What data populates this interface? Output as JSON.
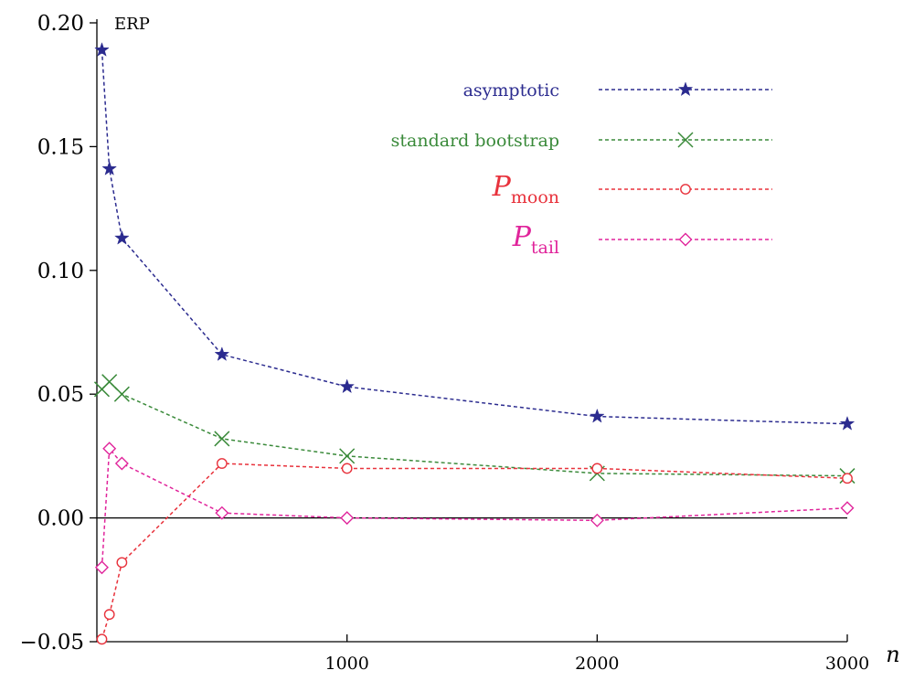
{
  "chart_data": {
    "type": "line",
    "ylabel": "ERP",
    "xlabel": "n",
    "xlim": [
      0,
      3000
    ],
    "ylim": [
      -0.05,
      0.2
    ],
    "xticks": [
      1000,
      2000,
      3000
    ],
    "xtick_labels": [
      "1000",
      "2000",
      "3000"
    ],
    "yticks": [
      -0.05,
      0.0,
      0.05,
      0.1,
      0.15,
      0.2
    ],
    "ytick_labels": [
      "−0.05",
      "0.00",
      "0.05",
      "0.10",
      "0.15",
      "0.20"
    ],
    "zero_line": true,
    "grid": false,
    "legend_position": "top-right",
    "series": [
      {
        "name": "asymptotic",
        "label": "asymptotic",
        "color": "#2b2b8f",
        "marker": "star",
        "x": [
          20,
          50,
          100,
          500,
          1000,
          2000,
          3000
        ],
        "values": [
          0.189,
          0.141,
          0.113,
          0.066,
          0.053,
          0.041,
          0.038
        ]
      },
      {
        "name": "standard bootstrap",
        "label": "standard bootstrap",
        "color": "#3a8a3a",
        "marker": "x",
        "x": [
          20,
          50,
          100,
          500,
          1000,
          2000,
          3000
        ],
        "values": [
          0.052,
          0.055,
          0.05,
          0.032,
          0.025,
          0.018,
          0.017
        ]
      },
      {
        "name": "P_moon",
        "label": "P",
        "label_sub": "moon",
        "color": "#e8323c",
        "marker": "circle",
        "x": [
          20,
          50,
          100,
          500,
          1000,
          2000,
          3000
        ],
        "values": [
          -0.049,
          -0.039,
          -0.018,
          0.022,
          0.02,
          0.02,
          0.016
        ]
      },
      {
        "name": "P_tail",
        "label": "P",
        "label_sub": "tail",
        "color": "#e0249b",
        "marker": "diamond",
        "x": [
          20,
          50,
          100,
          500,
          1000,
          2000,
          3000
        ],
        "values": [
          -0.02,
          0.028,
          0.022,
          0.002,
          0.0,
          -0.001,
          0.004
        ]
      }
    ]
  }
}
